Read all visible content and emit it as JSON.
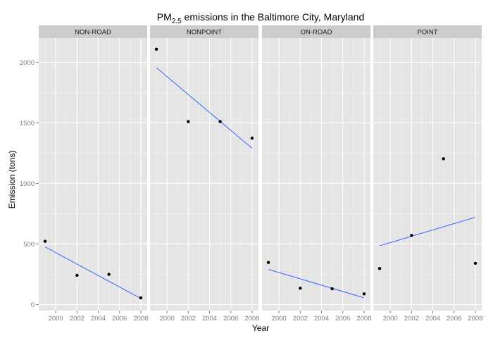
{
  "chart_data": {
    "type": "scatter",
    "title_prefix": "PM",
    "title_subscript": "2.5",
    "title_suffix": " emissions in the Baltimore City, Maryland",
    "xlabel": "Year",
    "ylabel": "Emission (tons)",
    "xlim": [
      1998.4,
      2008.6
    ],
    "ylim": [
      -50,
      2200
    ],
    "x_ticks": [
      2000,
      2002,
      2004,
      2006,
      2008
    ],
    "y_ticks": [
      0,
      500,
      1000,
      1500,
      2000
    ],
    "x_tick_labels": [
      "2000",
      "2002",
      "2004",
      "2006",
      "2008"
    ],
    "y_tick_labels": [
      "0",
      "500",
      "1000",
      "1500",
      "2000"
    ],
    "grid": true,
    "colors": {
      "panel_bg": "#e5e5e5",
      "grid_major": "#ffffff",
      "grid_minor": "#f2f2f2",
      "strip_bg": "#cccccc",
      "point": "#000000",
      "trend_line": "#3366ff"
    },
    "panels": [
      {
        "name": "NON-ROAD",
        "points": [
          {
            "x": 1999,
            "y": 522
          },
          {
            "x": 2002,
            "y": 241
          },
          {
            "x": 2005,
            "y": 249
          },
          {
            "x": 2008,
            "y": 55
          }
        ],
        "trend": [
          {
            "x": 1999,
            "y": 475
          },
          {
            "x": 2008,
            "y": 50
          }
        ]
      },
      {
        "name": "NONPOINT",
        "points": [
          {
            "x": 1999,
            "y": 2108
          },
          {
            "x": 2002,
            "y": 1510
          },
          {
            "x": 2005,
            "y": 1510
          },
          {
            "x": 2008,
            "y": 1373
          }
        ],
        "trend": [
          {
            "x": 1999,
            "y": 1955
          },
          {
            "x": 2008,
            "y": 1290
          }
        ]
      },
      {
        "name": "ON-ROAD",
        "points": [
          {
            "x": 1999,
            "y": 347
          },
          {
            "x": 2002,
            "y": 134
          },
          {
            "x": 2005,
            "y": 130
          },
          {
            "x": 2008,
            "y": 88
          }
        ],
        "trend": [
          {
            "x": 1999,
            "y": 290
          },
          {
            "x": 2008,
            "y": 55
          }
        ]
      },
      {
        "name": "POINT",
        "points": [
          {
            "x": 1999,
            "y": 297
          },
          {
            "x": 2002,
            "y": 570
          },
          {
            "x": 2005,
            "y": 1203
          },
          {
            "x": 2008,
            "y": 340
          }
        ],
        "trend": [
          {
            "x": 1999,
            "y": 485
          },
          {
            "x": 2008,
            "y": 720
          }
        ]
      }
    ]
  }
}
